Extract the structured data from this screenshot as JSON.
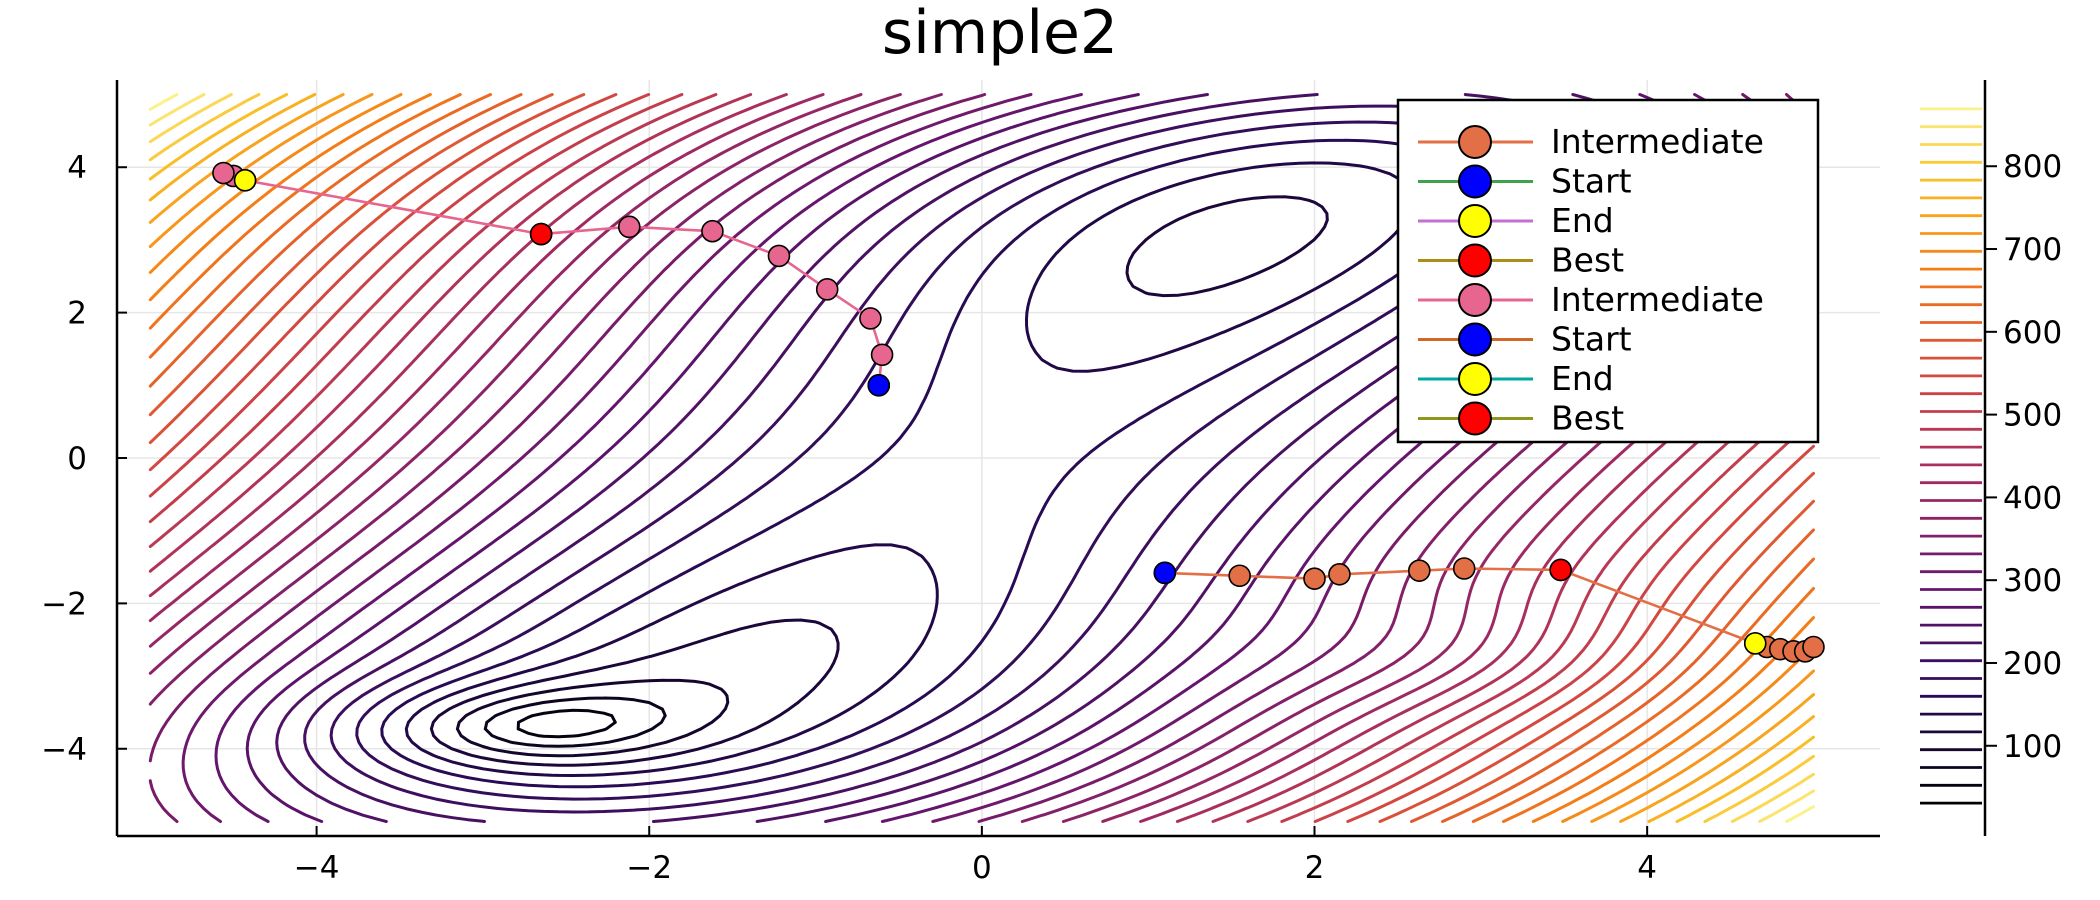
{
  "chart_data": {
    "type": "contour",
    "title": "simple2",
    "xlabel": "",
    "ylabel": "",
    "xlim": [
      -5.2,
      5.4
    ],
    "ylim": [
      -5.2,
      5.2
    ],
    "x_ticks": [
      -4,
      -2,
      0,
      2,
      4
    ],
    "y_ticks": [
      -4,
      -2,
      0,
      2,
      4
    ],
    "x_tick_labels": [
      "−4",
      "−2",
      "0",
      "2",
      "4"
    ],
    "y_tick_labels": [
      "−4",
      "−2",
      "0",
      "2",
      "4"
    ],
    "grid": true,
    "colorbar": {
      "ticks": [
        100,
        200,
        300,
        400,
        500,
        600,
        700,
        800
      ],
      "tick_labels": [
        "100",
        "200",
        "300",
        "400",
        "500",
        "600",
        "700",
        "800"
      ],
      "range": [
        20,
        880
      ],
      "levels": 40,
      "colormap": "inferno"
    },
    "legend_position": "top-right",
    "legend": [
      {
        "label": "Intermediate",
        "line_color": "#e26f46",
        "marker_color": "#e26f46"
      },
      {
        "label": "Start",
        "line_color": "#3da44d",
        "marker_color": "#0000ff"
      },
      {
        "label": "End",
        "line_color": "#c271d2",
        "marker_color": "#ffff00"
      },
      {
        "label": "Best",
        "line_color": "#ac8d18",
        "marker_color": "#ff0000"
      },
      {
        "label": "Intermediate",
        "line_color": "#e6668f",
        "marker_color": "#e6668f"
      },
      {
        "label": "Start",
        "line_color": "#cf6928",
        "marker_color": "#0000ff"
      },
      {
        "label": "End",
        "line_color": "#00a9a0",
        "marker_color": "#ffff00"
      },
      {
        "label": "Best",
        "line_color": "#8e971e",
        "marker_color": "#ff0000"
      }
    ],
    "series": [
      {
        "label": "Intermediate",
        "color": "#e26f46",
        "x": [
          1.1,
          1.55,
          2.0,
          2.15,
          2.63,
          2.9,
          3.48,
          4.65,
          4.72,
          4.8,
          4.88,
          4.95,
          5.0
        ],
        "y": [
          -1.58,
          -1.62,
          -1.66,
          -1.6,
          -1.55,
          -1.52,
          -1.54,
          -2.55,
          -2.6,
          -2.63,
          -2.66,
          -2.66,
          -2.6
        ],
        "start": [
          1.1,
          -1.58
        ],
        "end": [
          4.65,
          -2.55
        ],
        "best": [
          3.48,
          -1.54
        ]
      },
      {
        "label": "Intermediate",
        "color": "#e6668f",
        "x": [
          -0.62,
          -0.6,
          -0.67,
          -0.93,
          -1.22,
          -1.62,
          -2.12,
          -2.65,
          -4.43,
          -4.5,
          -4.56
        ],
        "y": [
          1.0,
          1.42,
          1.92,
          2.32,
          2.78,
          3.12,
          3.18,
          3.08,
          3.82,
          3.88,
          3.92
        ],
        "start": [
          -0.62,
          1.0
        ],
        "end": [
          -4.43,
          3.82
        ],
        "best": [
          -2.65,
          3.08
        ]
      }
    ]
  }
}
